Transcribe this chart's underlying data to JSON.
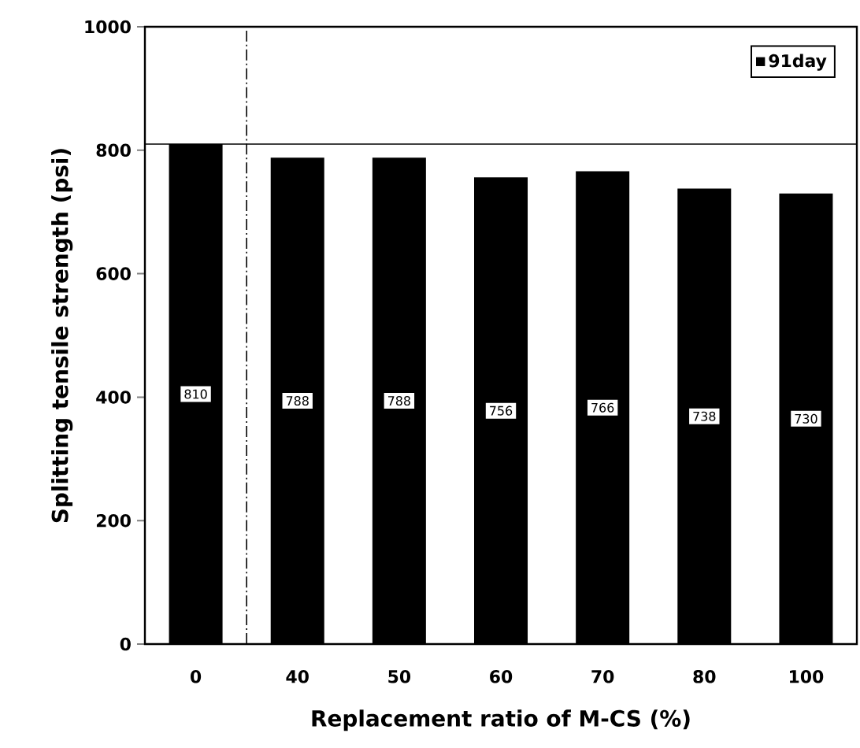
{
  "chart_data": {
    "type": "bar",
    "xlabel": "Replacement ratio of M-CS (%)",
    "ylabel": "Splitting tensile strength (psi)",
    "categories": [
      "0",
      "40",
      "50",
      "60",
      "70",
      "80",
      "100"
    ],
    "series": [
      {
        "name": "91day",
        "color": "#000000",
        "values": [
          810,
          788,
          788,
          756,
          766,
          738,
          730
        ]
      }
    ],
    "ylim": [
      0,
      1000
    ],
    "yticks": [
      0,
      200,
      400,
      600,
      800,
      1000
    ],
    "ref_lines": [
      {
        "axis": "y",
        "value": 810,
        "line_style": "solid"
      }
    ],
    "data_labels": true,
    "legend": "top right",
    "grid": false
  }
}
